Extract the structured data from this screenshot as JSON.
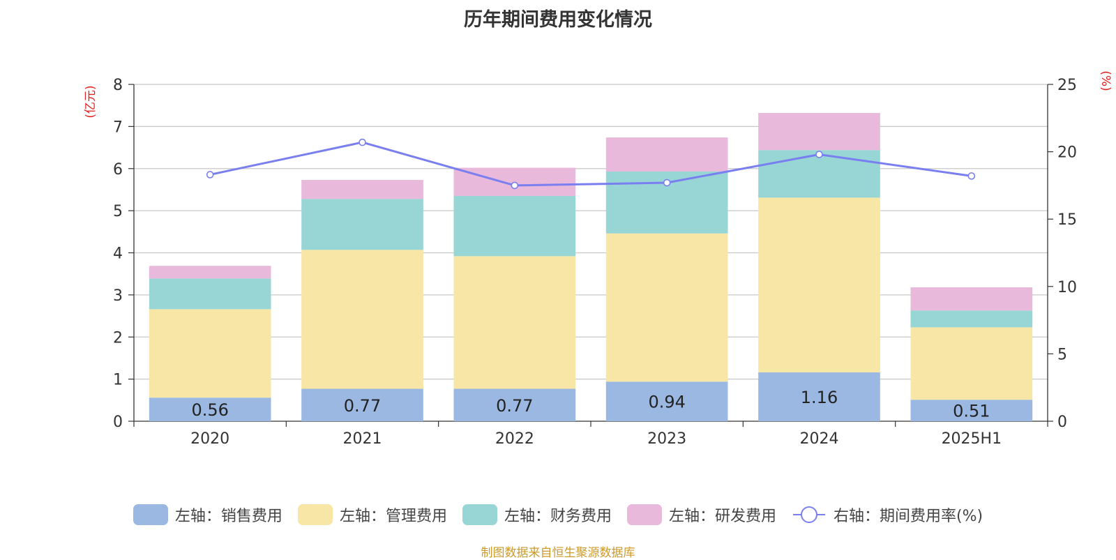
{
  "title": "历年期间费用变化情况",
  "source": "制图数据来自恒生聚源数据库",
  "colors": {
    "sales": "#9bb8e3",
    "admin": "#f8e6a6",
    "finance": "#98d5d5",
    "rd": "#e8b9da",
    "rate": "#7a7ff0",
    "axis_unit": "#e0201c",
    "source": "#cc9a2b",
    "grid": "#c8c8c8",
    "axis": "#333333"
  },
  "chart_data": {
    "type": "bar",
    "stacked": true,
    "categories": [
      "2020",
      "2021",
      "2022",
      "2023",
      "2024",
      "2025H1"
    ],
    "y_left_unit": "(亿元)",
    "y_right_unit": "(%)",
    "ylim_left": [
      0,
      8
    ],
    "ylim_right": [
      0,
      25
    ],
    "yticks_left": [
      "0",
      "1",
      "2",
      "3",
      "4",
      "5",
      "6",
      "7",
      "8"
    ],
    "yticks_right": [
      "0",
      "5",
      "10",
      "15",
      "20",
      "25"
    ],
    "grid": true,
    "legend_position": "bottom",
    "series": [
      {
        "name": "左轴：销售费用",
        "key": "sales",
        "axis": "left",
        "type": "bar",
        "values": [
          0.56,
          0.77,
          0.77,
          0.94,
          1.16,
          0.51
        ],
        "labels": [
          "0.56",
          "0.77",
          "0.77",
          "0.94",
          "1.16",
          "0.51"
        ]
      },
      {
        "name": "左轴：管理费用",
        "key": "admin",
        "axis": "left",
        "type": "bar",
        "values": [
          2.1,
          3.3,
          3.15,
          3.52,
          4.15,
          1.72
        ]
      },
      {
        "name": "左轴：财务费用",
        "key": "finance",
        "axis": "left",
        "type": "bar",
        "values": [
          0.73,
          1.21,
          1.43,
          1.47,
          1.13,
          0.4
        ]
      },
      {
        "name": "左轴：研发费用",
        "key": "rd",
        "axis": "left",
        "type": "bar",
        "values": [
          0.3,
          0.45,
          0.67,
          0.81,
          0.88,
          0.55
        ]
      },
      {
        "name": "右轴：期间费用率(%)",
        "key": "rate",
        "axis": "right",
        "type": "line",
        "values": [
          18.3,
          20.7,
          17.5,
          17.7,
          19.8,
          18.2
        ]
      }
    ]
  }
}
